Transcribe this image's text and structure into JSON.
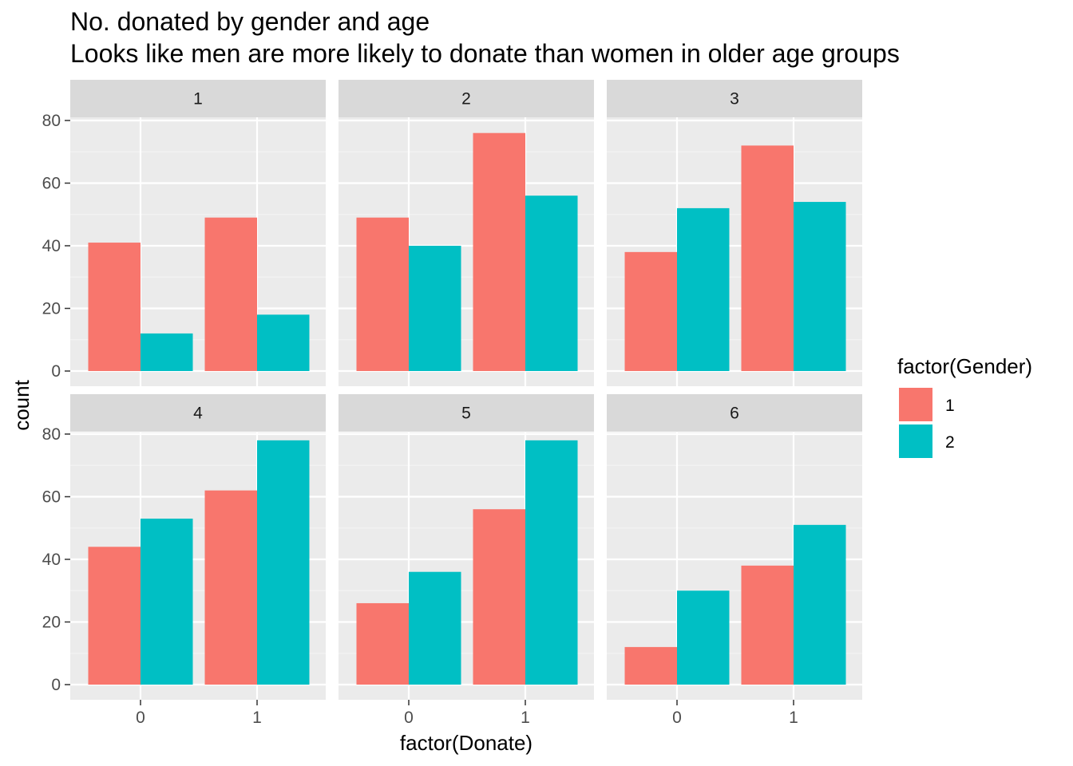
{
  "chart_data": {
    "type": "bar",
    "title": "No. donated by gender and age",
    "subtitle": "Looks like men are more likely to donate than women in older age groups",
    "xlabel": "factor(Donate)",
    "ylabel": "count",
    "categories": [
      "0",
      "1"
    ],
    "ylim": [
      0,
      90
    ],
    "yticks": [
      0,
      20,
      40,
      60,
      80
    ],
    "grid": true,
    "legend": {
      "title": "factor(Gender)",
      "position": "right",
      "entries": [
        {
          "label": "1",
          "color": "#F8766D"
        },
        {
          "label": "2",
          "color": "#00BFC4"
        }
      ]
    },
    "panels": [
      {
        "label": "1",
        "series": [
          {
            "name": "1",
            "values": [
              41,
              49
            ]
          },
          {
            "name": "2",
            "values": [
              12,
              18
            ]
          }
        ]
      },
      {
        "label": "2",
        "series": [
          {
            "name": "1",
            "values": [
              49,
              76
            ]
          },
          {
            "name": "2",
            "values": [
              40,
              56
            ]
          }
        ]
      },
      {
        "label": "3",
        "series": [
          {
            "name": "1",
            "values": [
              38,
              72
            ]
          },
          {
            "name": "2",
            "values": [
              52,
              54
            ]
          }
        ]
      },
      {
        "label": "4",
        "series": [
          {
            "name": "1",
            "values": [
              44,
              62
            ]
          },
          {
            "name": "2",
            "values": [
              53,
              78
            ]
          }
        ]
      },
      {
        "label": "5",
        "series": [
          {
            "name": "1",
            "values": [
              26,
              56
            ]
          },
          {
            "name": "2",
            "values": [
              36,
              78
            ]
          }
        ]
      },
      {
        "label": "6",
        "series": [
          {
            "name": "1",
            "values": [
              12,
              38
            ]
          },
          {
            "name": "2",
            "values": [
              30,
              51
            ]
          }
        ]
      }
    ]
  }
}
